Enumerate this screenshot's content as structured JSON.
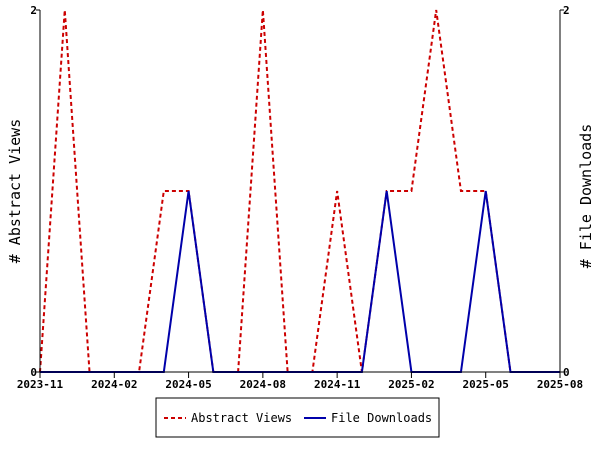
{
  "chart_data": {
    "type": "line",
    "x": [
      "2023-11",
      "2023-12",
      "2024-01",
      "2024-02",
      "2024-03",
      "2024-04",
      "2024-05",
      "2024-06",
      "2024-07",
      "2024-08",
      "2024-09",
      "2024-10",
      "2024-11",
      "2024-12",
      "2025-01",
      "2025-02",
      "2025-03",
      "2025-04",
      "2025-05",
      "2025-06",
      "2025-07",
      "2025-08"
    ],
    "xticks": [
      "2023-11",
      "2024-02",
      "2024-05",
      "2024-08",
      "2024-11",
      "2025-02",
      "2025-05",
      "2025-08"
    ],
    "series": [
      {
        "name": "Abstract Views",
        "axis": "left",
        "color": "#cc0000",
        "style": "dashed",
        "values": [
          0,
          2,
          0,
          0,
          0,
          1,
          1,
          0,
          0,
          2,
          0,
          0,
          1,
          0,
          1,
          1,
          2,
          1,
          1,
          0,
          0,
          0
        ]
      },
      {
        "name": "File Downloads",
        "axis": "right",
        "color": "#0000aa",
        "style": "solid",
        "values": [
          0,
          0,
          0,
          0,
          0,
          0,
          1,
          0,
          0,
          0,
          0,
          0,
          0,
          0,
          1,
          0,
          0,
          0,
          1,
          0,
          0,
          0
        ]
      }
    ],
    "ylabel_left": "# Abstract Views",
    "ylabel_right": "# File Downloads",
    "ylim_left": [
      0,
      2
    ],
    "ylim_right": [
      0,
      2
    ],
    "yticks_left": [
      "0",
      "2"
    ],
    "yticks_right": [
      "0",
      "2"
    ],
    "grid": false,
    "legend_position": "bottom"
  }
}
